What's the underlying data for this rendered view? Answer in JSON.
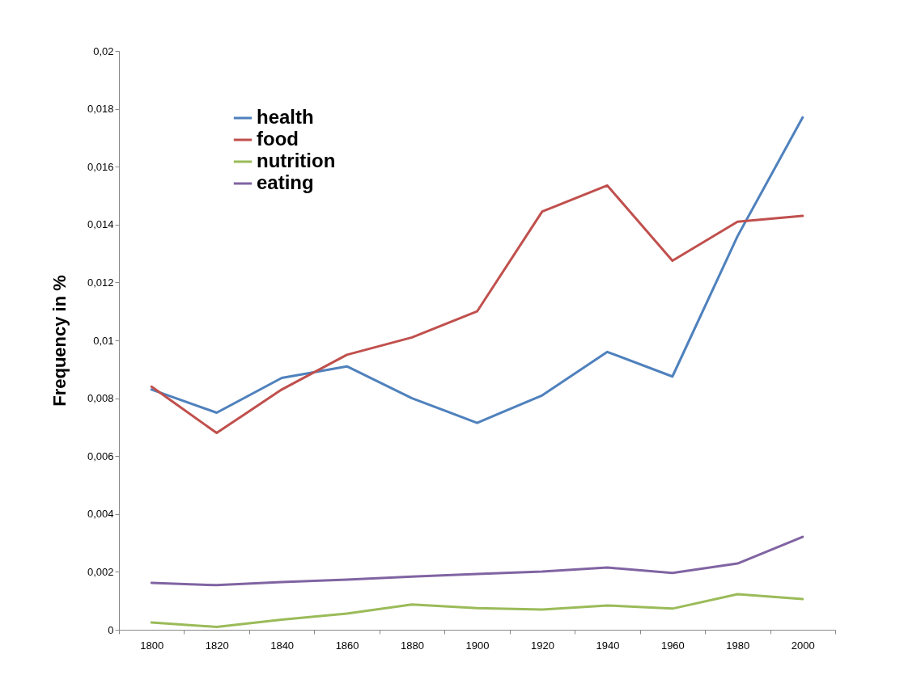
{
  "chart_data": {
    "type": "line",
    "ylabel": "Frequency in %",
    "categories": [
      "1800",
      "1820",
      "1840",
      "1860",
      "1880",
      "1900",
      "1920",
      "1940",
      "1960",
      "1980",
      "2000"
    ],
    "series": [
      {
        "name": "health",
        "color": "#4f81bd",
        "values": [
          0.0083,
          0.0075,
          0.0087,
          0.0091,
          0.008,
          0.00715,
          0.0081,
          0.0096,
          0.00875,
          0.0136,
          0.0177
        ]
      },
      {
        "name": "food",
        "color": "#c0504d",
        "values": [
          0.0084,
          0.0068,
          0.0083,
          0.0095,
          0.0101,
          0.011,
          0.01445,
          0.01535,
          0.01275,
          0.0141,
          0.0143
        ]
      },
      {
        "name": "nutrition",
        "color": "#9bbb59",
        "values": [
          0.00025,
          0.0001,
          0.00035,
          0.00056,
          0.00087,
          0.00075,
          0.0007,
          0.00084,
          0.00073,
          0.00123,
          0.00106
        ]
      },
      {
        "name": "eating",
        "color": "#8064a2",
        "values": [
          0.00162,
          0.00154,
          0.00165,
          0.00173,
          0.00184,
          0.00193,
          0.00201,
          0.00215,
          0.00196,
          0.00229,
          0.00321
        ]
      }
    ],
    "ylim": [
      0,
      0.02
    ],
    "yticks": [
      0,
      {
        "value": 0.002,
        "label": "0,002"
      },
      {
        "value": 0.004,
        "label": "0,004"
      },
      {
        "value": 0.006,
        "label": "0,006"
      },
      {
        "value": 0.008,
        "label": "0,008"
      },
      {
        "value": 0.01,
        "label": "0,01"
      },
      {
        "value": 0.012,
        "label": "0,012"
      },
      {
        "value": 0.014,
        "label": "0,014"
      },
      {
        "value": 0.016,
        "label": "0,016"
      },
      {
        "value": 0.018,
        "label": "0,018"
      },
      {
        "value": 0.02,
        "label": "0,02"
      }
    ],
    "legend": "top left"
  }
}
